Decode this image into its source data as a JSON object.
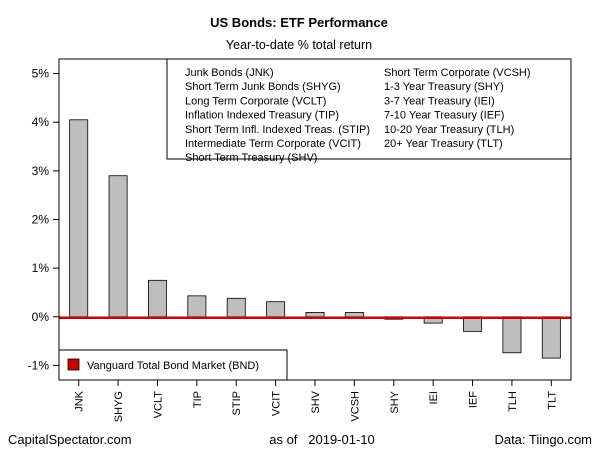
{
  "chart_data": {
    "type": "bar",
    "title": "US Bonds: ETF Performance",
    "subtitle": "Year-to-date % total return",
    "categories": [
      "JNK",
      "SHYG",
      "VCLT",
      "TIP",
      "STIP",
      "VCIT",
      "SHV",
      "VCSH",
      "SHY",
      "IEI",
      "IEF",
      "TLH",
      "TLT"
    ],
    "values": [
      4.05,
      2.9,
      0.75,
      0.43,
      0.38,
      0.31,
      0.09,
      0.09,
      -0.05,
      -0.13,
      -0.3,
      -0.74,
      -0.85
    ],
    "ylim": [
      -1.3,
      5.3
    ],
    "yticks": [
      5,
      4,
      3,
      2,
      1,
      0,
      -1
    ],
    "ytick_labels": [
      "5%",
      "4%",
      "3%",
      "2%",
      "1%",
      "0%",
      "-1%"
    ],
    "xlabel": "",
    "ylabel": "",
    "bar_color": "#bebebe",
    "reference_line": {
      "name": "Vanguard Total Bond Market (BND)",
      "value": -0.02,
      "color": "#cc0000"
    },
    "legend_entries": [
      "Junk Bonds (JNK)",
      "Short Term Junk Bonds (SHYG)",
      "Long Term Corporate (VCLT)",
      "Inflation Indexed Treasury (TIP)",
      "Short Term Infl. Indexed Treas. (STIP)",
      "Intermediate Term Corporate (VCIT)",
      "Short Term Treasury (SHV)",
      "Short Term Corporate (VCSH)",
      "1-3 Year Treasury (SHY)",
      "3-7 Year Treasury (IEI)",
      "7-10 Year Treasury (IEF)",
      "10-20 Year Treasury (TLH)",
      "20+ Year Treasury (TLT)"
    ],
    "legend_placement": "top-right",
    "grid": false
  },
  "footer": {
    "left": "CapitalSpectator.com",
    "center": "as of   2019-01-10",
    "right": "Data: Tiingo.com"
  }
}
